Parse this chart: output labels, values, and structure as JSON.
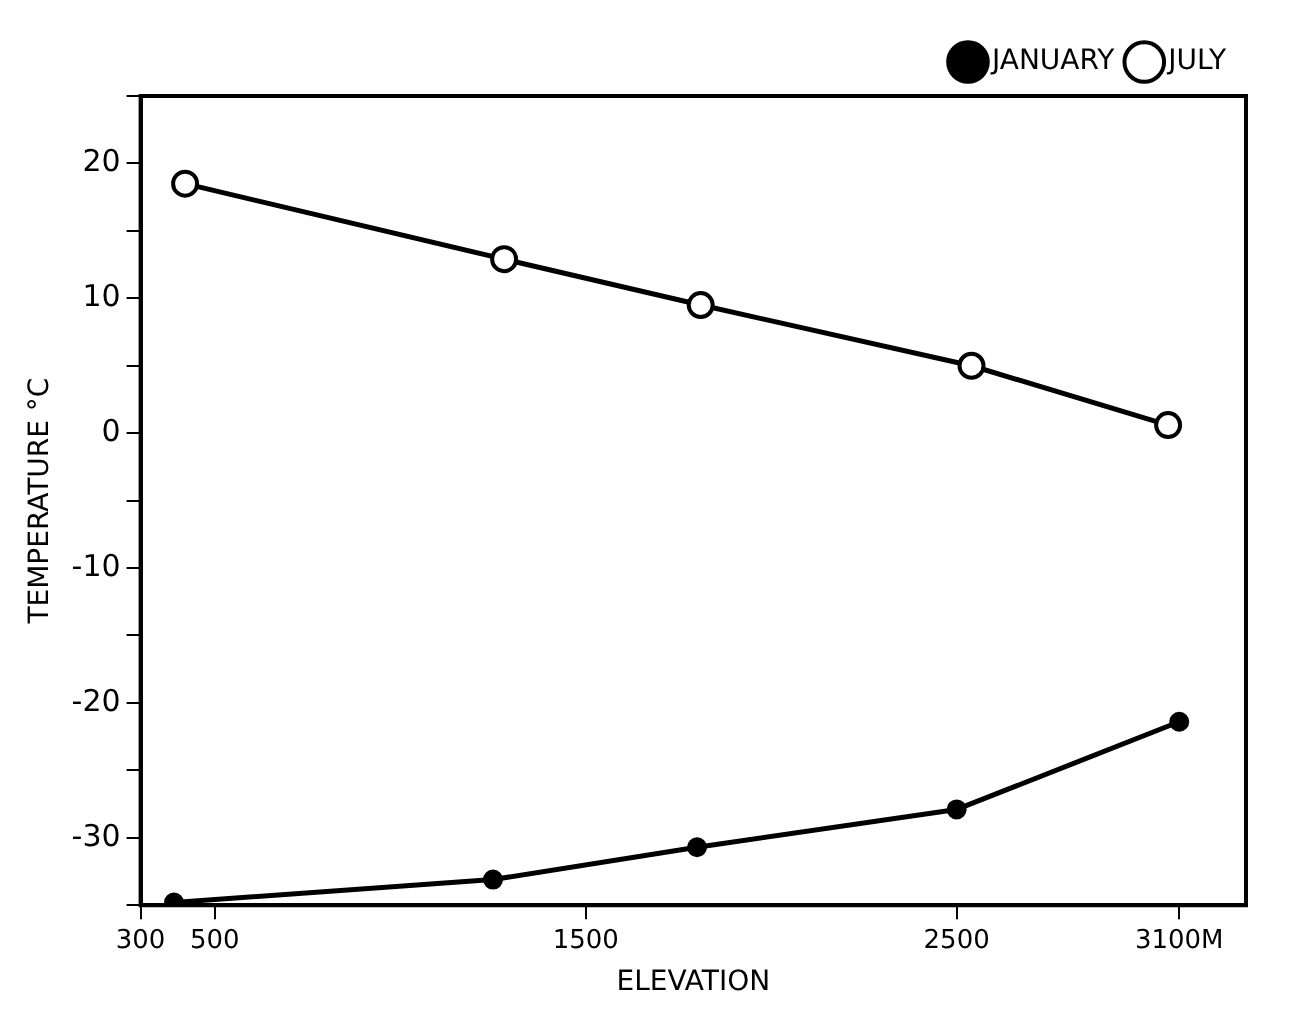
{
  "chart_data": {
    "type": "line",
    "xlabel": "ELEVATION",
    "ylabel": "TEMPERATURE °C",
    "xlim": [
      300,
      3280
    ],
    "xticks": [
      300,
      500,
      1500,
      2500,
      {
        "value": 3100,
        "label": "3100M"
      }
    ],
    "ylim": [
      -35,
      25
    ],
    "yticks": [
      {
        "value": -35,
        "label": null
      },
      -30,
      {
        "value": -25,
        "label": null
      },
      -20,
      {
        "value": -15,
        "label": null
      },
      -10,
      {
        "value": -5,
        "label": null
      },
      0,
      {
        "value": 5,
        "label": null
      },
      10,
      {
        "value": 15,
        "label": null
      },
      20,
      {
        "value": 25,
        "label": null
      }
    ],
    "grid": false,
    "legend": "top right",
    "marker": "circle",
    "line_style": "solid",
    "series": [
      {
        "name": "JANUARY",
        "color": "#000000",
        "x": [
          390,
          1250,
          1800,
          2500,
          3100
        ],
        "values": [
          -34.8,
          -33.1,
          -30.7,
          -27.9,
          -21.4
        ]
      },
      {
        "name": "JULY",
        "color": "#000000",
        "x": [
          420,
          1280,
          1810,
          2540,
          3070
        ],
        "values": [
          18.5,
          12.9,
          9.5,
          5.0,
          0.6
        ]
      }
    ]
  }
}
